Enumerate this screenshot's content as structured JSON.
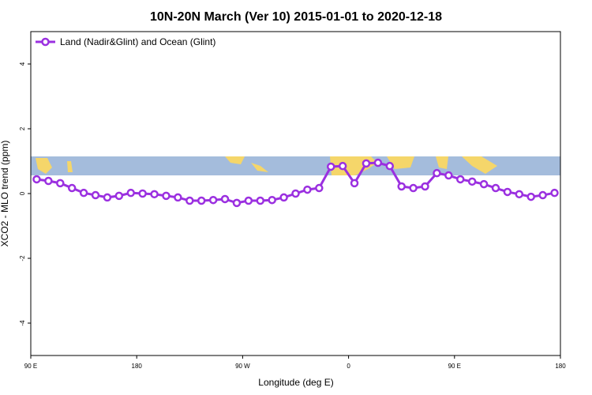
{
  "chart_data": {
    "type": "line",
    "title": "10N-20N March (Ver 10)   2015-01-01 to 2020-12-18",
    "x_label": "Longitude (deg E)",
    "y_label": "XCO2 - MLO trend (ppm)",
    "xlim": [
      90,
      540
    ],
    "xticks": [
      {
        "value": 90,
        "label": "90 E"
      },
      {
        "value": 180,
        "label": "180"
      },
      {
        "value": 270,
        "label": "90 W"
      },
      {
        "value": 360,
        "label": "0"
      },
      {
        "value": 450,
        "label": "90 E"
      },
      {
        "value": 540,
        "label": "180"
      }
    ],
    "ylim": [
      -5,
      5
    ],
    "yticks": [
      -4,
      -2,
      0,
      2,
      4
    ],
    "legend": "top-left",
    "x": [
      95,
      105,
      115,
      125,
      135,
      145,
      155,
      165,
      175,
      185,
      195,
      205,
      215,
      225,
      235,
      245,
      255,
      265,
      275,
      285,
      295,
      305,
      315,
      325,
      335,
      345,
      355,
      365,
      375,
      385,
      395,
      405,
      415,
      425,
      435,
      445,
      455,
      465,
      475,
      485,
      495,
      505,
      515,
      525,
      535
    ],
    "series": [
      {
        "name": "Land (Nadir&Glint) and Ocean (Glint)",
        "color": "#9b30e0",
        "values": [
          0.44,
          0.39,
          0.32,
          0.17,
          0.02,
          -0.05,
          -0.12,
          -0.07,
          0.02,
          0,
          -0.02,
          -0.07,
          -0.12,
          -0.22,
          -0.22,
          -0.2,
          -0.17,
          -0.29,
          -0.22,
          -0.22,
          -0.2,
          -0.12,
          0,
          0.12,
          0.17,
          0.83,
          0.85,
          0.32,
          0.93,
          0.95,
          0.85,
          0.22,
          0.17,
          0.22,
          0.63,
          0.56,
          0.44,
          0.37,
          0.29,
          0.17,
          0.05,
          -0.02,
          -0.1,
          -0.05,
          0.02
        ]
      }
    ]
  }
}
